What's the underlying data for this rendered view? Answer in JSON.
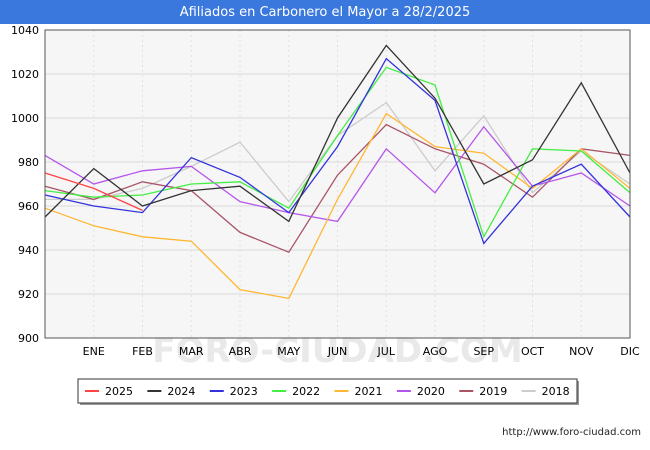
{
  "title": "Afiliados en Carbonero el Mayor a 28/2/2025",
  "source": "http://www.foro-ciudad.com",
  "watermark": "FORO-CIUDAD.COM",
  "chart_data": {
    "type": "line",
    "categories": [
      "",
      "ENE",
      "FEB",
      "MAR",
      "ABR",
      "MAY",
      "JUN",
      "JUL",
      "AGO",
      "SEP",
      "OCT",
      "NOV",
      "DIC"
    ],
    "ylim": [
      900,
      1040
    ],
    "yticks": [
      900,
      920,
      940,
      960,
      980,
      1000,
      1020,
      1040
    ],
    "grid": true,
    "legend_position": "bottom",
    "series": [
      {
        "name": "2025",
        "color": "#ff4444",
        "values": [
          975,
          968,
          958,
          null,
          null,
          null,
          null,
          null,
          null,
          null,
          null,
          null,
          null
        ]
      },
      {
        "name": "2024",
        "color": "#333333",
        "values": [
          955,
          977,
          960,
          967,
          969,
          953,
          1000,
          1033,
          1009,
          970,
          981,
          1016,
          975
        ]
      },
      {
        "name": "2023",
        "color": "#3333dd",
        "values": [
          965,
          960,
          957,
          982,
          973,
          957,
          987,
          1027,
          1008,
          943,
          969,
          979,
          955
        ]
      },
      {
        "name": "2022",
        "color": "#44ee44",
        "values": [
          967,
          964,
          965,
          970,
          971,
          959,
          992,
          1023,
          1015,
          946,
          986,
          985,
          966
        ]
      },
      {
        "name": "2021",
        "color": "#ffb733",
        "values": [
          959,
          951,
          946,
          944,
          922,
          918,
          963,
          1002,
          987,
          984,
          968,
          986,
          968
        ]
      },
      {
        "name": "2020",
        "color": "#b555ea",
        "values": [
          983,
          970,
          976,
          978,
          962,
          957,
          953,
          986,
          966,
          996,
          969,
          975,
          960
        ]
      },
      {
        "name": "2019",
        "color": "#aa5566",
        "values": [
          969,
          963,
          971,
          967,
          948,
          939,
          974,
          997,
          986,
          979,
          964,
          986,
          983
        ]
      },
      {
        "name": "2018",
        "color": "#cccccc",
        "values": [
          963,
          963,
          968,
          978,
          989,
          962,
          992,
          1007,
          976,
          1001,
          966,
          985,
          970
        ]
      }
    ]
  }
}
